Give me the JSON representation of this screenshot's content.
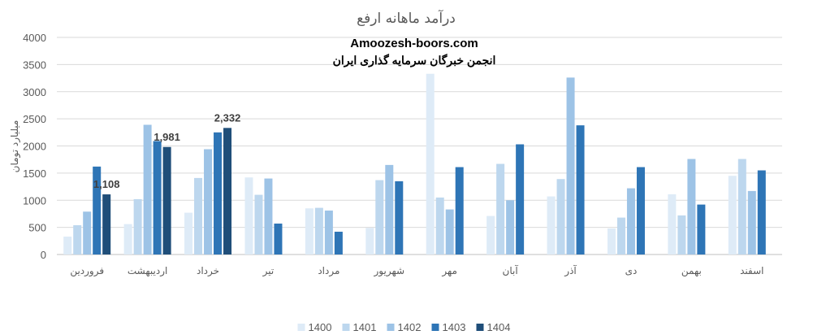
{
  "chart_data": {
    "type": "bar",
    "title": "درآمد ماهانه ارفع",
    "watermark_lines": [
      "Amoozesh-boors.com",
      "انجمن خبرگان سرمایه گذاری ایران"
    ],
    "ylabel": "میلیارد تومان",
    "xlabel": "",
    "ylim": [
      0,
      4000
    ],
    "yticks": [
      "0",
      "500",
      "1000",
      "1500",
      "2000",
      "2500",
      "3000",
      "3500",
      "4000"
    ],
    "grid": true,
    "legend_position": "bottom",
    "categories": [
      "فروردین",
      "اردیبهشت",
      "خرداد",
      "تیر",
      "مرداد",
      "شهریور",
      "مهر",
      "آبان",
      "آذر",
      "دی",
      "بهمن",
      "اسفند"
    ],
    "series": [
      {
        "name": "1400",
        "color": "#deebf7",
        "values": [
          330,
          560,
          770,
          1420,
          850,
          490,
          3330,
          710,
          1070,
          480,
          1110,
          1450
        ]
      },
      {
        "name": "1401",
        "color": "#bdd7ee",
        "values": [
          540,
          1020,
          1410,
          1100,
          860,
          1370,
          1050,
          1670,
          1390,
          680,
          720,
          1760
        ]
      },
      {
        "name": "1402",
        "color": "#9dc3e6",
        "values": [
          790,
          2390,
          1940,
          1400,
          810,
          1650,
          830,
          1000,
          3260,
          1220,
          1760,
          1170
        ]
      },
      {
        "name": "1403",
        "color": "#2e75b6",
        "values": [
          1620,
          2090,
          2250,
          570,
          420,
          1350,
          1610,
          2030,
          2380,
          1610,
          920,
          1550
        ]
      },
      {
        "name": "1404",
        "color": "#1f4e79",
        "values": [
          1108,
          1981,
          2332,
          null,
          null,
          null,
          null,
          null,
          null,
          null,
          null,
          null
        ]
      }
    ],
    "data_labels": [
      {
        "category_index": 0,
        "series_index": 4,
        "text": "1,108"
      },
      {
        "category_index": 1,
        "series_index": 4,
        "text": "1,981"
      },
      {
        "category_index": 2,
        "series_index": 4,
        "text": "2,332"
      }
    ]
  }
}
